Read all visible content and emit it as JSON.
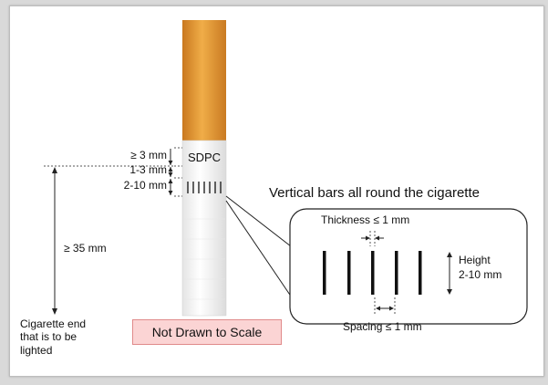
{
  "diagram": {
    "marking_label": "SDPC",
    "dimensions": {
      "top_gap": "≥ 3 mm",
      "text_band": "1-3 mm",
      "bars_band": "2-10 mm",
      "from_lit_end": "≥ 35 mm"
    },
    "lit_end_label": [
      "Cigarette end",
      "that is to be",
      "lighted"
    ],
    "callout_title": "Vertical bars all round the cigarette",
    "detail": {
      "thickness": "Thickness  ≤ 1 mm",
      "height": [
        "Height",
        "2-10 mm"
      ],
      "spacing": "Spacing  ≤ 1 mm"
    },
    "note": "Not Drawn to Scale"
  },
  "colors": {
    "filter": "#e8a23a",
    "paper": "#f7f7f7",
    "note_fill": "#fbd4d4",
    "note_border": "#e08a8a"
  }
}
